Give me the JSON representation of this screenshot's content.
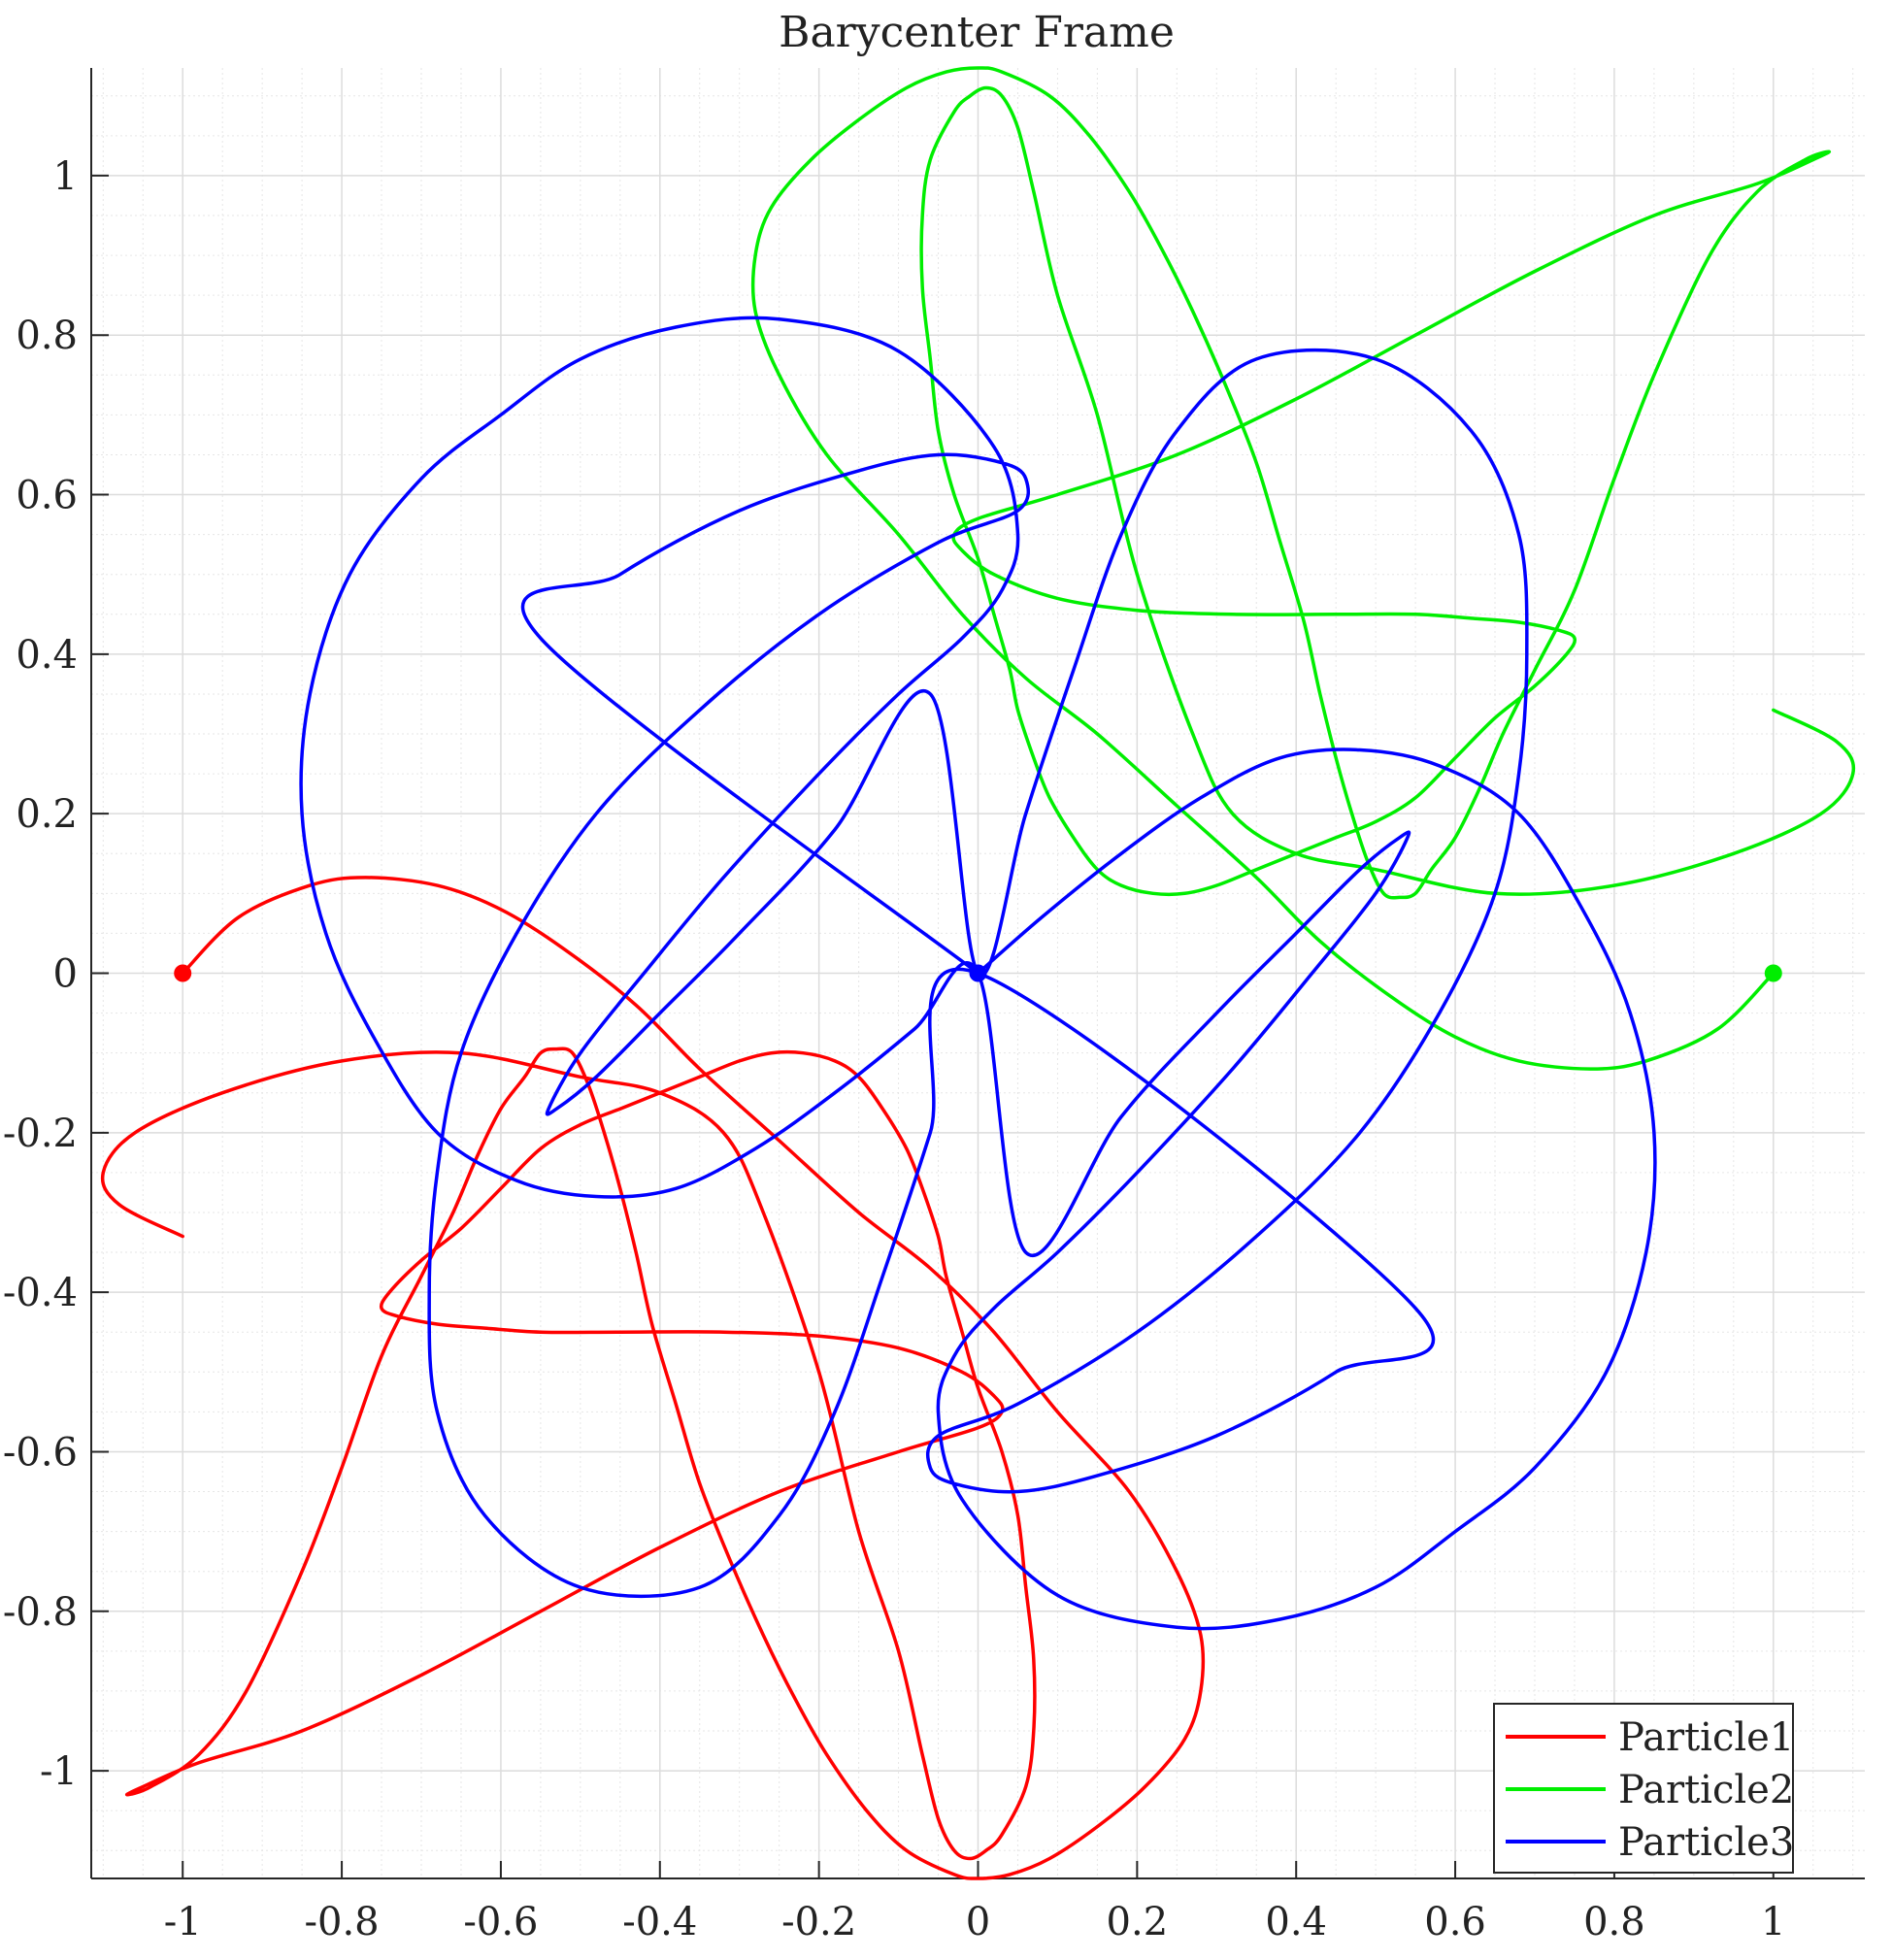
{
  "chart_data": {
    "type": "line",
    "title": "Barycenter Frame",
    "xlabel": "",
    "ylabel": "",
    "xlim": [
      -1.115,
      1.115
    ],
    "ylim": [
      -1.135,
      1.135
    ],
    "xticks": [
      -1,
      -0.8,
      -0.6,
      -0.4,
      -0.2,
      0,
      0.2,
      0.4,
      0.6,
      0.8,
      1
    ],
    "xtick_labels": [
      "-1",
      "-0.8",
      "-0.6",
      "-0.4",
      "-0.2",
      "0",
      "0.2",
      "0.4",
      "0.6",
      "0.8",
      "1"
    ],
    "yticks": [
      -1,
      -0.8,
      -0.6,
      -0.4,
      -0.2,
      0,
      0.2,
      0.4,
      0.6,
      0.8,
      1
    ],
    "ytick_labels": [
      "-1",
      "-0.8",
      "-0.6",
      "-0.4",
      "-0.2",
      "0",
      "0.2",
      "0.4",
      "0.6",
      "0.8",
      "1"
    ],
    "grid": true,
    "minor_grid": true,
    "legend_position": "bottom-right",
    "series": [
      {
        "name": "Particle1",
        "color": "#ff0000",
        "start_marker": [
          -1,
          0
        ],
        "x": [
          -1,
          -0.93,
          -0.84,
          -0.77,
          -0.68,
          -0.6,
          -0.52,
          -0.43,
          -0.35,
          -0.25,
          -0.15,
          -0.06,
          0.02,
          0.1,
          0.19,
          0.25,
          0.28,
          0.28,
          0.26,
          0.21,
          0.15,
          0.09,
          0.04,
          0,
          -0.03,
          -0.09,
          -0.14,
          -0.19,
          -0.23,
          -0.27,
          -0.31,
          -0.35,
          -0.38,
          -0.41,
          -0.43,
          -0.45,
          -0.47,
          -0.49,
          -0.51,
          -0.53,
          -0.55,
          -0.57,
          -0.6,
          -0.63,
          -0.66,
          -0.7,
          -0.75,
          -0.8,
          -0.85,
          -0.92,
          -0.98,
          -1.04,
          -1.07,
          -1.05,
          -0.98,
          -0.85,
          -0.7,
          -0.55,
          -0.4,
          -0.25,
          -0.1,
          0,
          0.03,
          0.02,
          -0.02,
          -0.1,
          -0.2,
          -0.32,
          -0.45,
          -0.55,
          -0.62,
          -0.68,
          -0.73,
          -0.75,
          -0.74,
          -0.7,
          -0.65,
          -0.6,
          -0.55,
          -0.5,
          -0.45,
          -0.4,
          -0.35,
          -0.3,
          -0.26,
          -0.22,
          -0.18,
          -0.15,
          -0.12,
          -0.09,
          -0.07,
          -0.05,
          -0.04,
          -0.02,
          0,
          0.03,
          0.05,
          0.06,
          0.07,
          0.07,
          0.06,
          0.03,
          0.01,
          -0.01,
          -0.03,
          -0.05,
          -0.07,
          -0.1,
          -0.15,
          -0.2,
          -0.27,
          -0.32,
          -0.4,
          -0.5,
          -0.65,
          -0.8,
          -0.95,
          -1.06,
          -1.1,
          -1.08,
          -1.0
        ],
        "y": [
          0,
          0.07,
          0.11,
          0.12,
          0.11,
          0.08,
          0.03,
          -0.04,
          -0.12,
          -0.21,
          -0.3,
          -0.37,
          -0.45,
          -0.55,
          -0.65,
          -0.75,
          -0.83,
          -0.9,
          -0.96,
          -1.02,
          -1.07,
          -1.11,
          -1.13,
          -1.135,
          -1.13,
          -1.1,
          -1.05,
          -0.98,
          -0.91,
          -0.83,
          -0.74,
          -0.64,
          -0.54,
          -0.44,
          -0.35,
          -0.27,
          -0.2,
          -0.14,
          -0.1,
          -0.095,
          -0.1,
          -0.13,
          -0.17,
          -0.23,
          -0.3,
          -0.38,
          -0.48,
          -0.62,
          -0.75,
          -0.9,
          -0.98,
          -1.02,
          -1.03,
          -1.02,
          -0.99,
          -0.95,
          -0.88,
          -0.8,
          -0.72,
          -0.65,
          -0.6,
          -0.57,
          -0.55,
          -0.53,
          -0.5,
          -0.47,
          -0.455,
          -0.45,
          -0.45,
          -0.45,
          -0.445,
          -0.44,
          -0.43,
          -0.42,
          -0.4,
          -0.36,
          -0.32,
          -0.27,
          -0.22,
          -0.19,
          -0.17,
          -0.15,
          -0.13,
          -0.11,
          -0.1,
          -0.1,
          -0.11,
          -0.13,
          -0.17,
          -0.22,
          -0.27,
          -0.33,
          -0.38,
          -0.45,
          -0.52,
          -0.6,
          -0.68,
          -0.77,
          -0.86,
          -0.95,
          -1.02,
          -1.08,
          -1.1,
          -1.11,
          -1.1,
          -1.06,
          -0.98,
          -0.85,
          -0.7,
          -0.5,
          -0.3,
          -0.2,
          -0.15,
          -0.13,
          -0.1,
          -0.11,
          -0.15,
          -0.2,
          -0.25,
          -0.29,
          -0.33
        ]
      },
      {
        "name": "Particle2",
        "color": "#00ee00",
        "start_marker": [
          1,
          0
        ],
        "x": [
          1,
          0.93,
          0.84,
          0.77,
          0.68,
          0.6,
          0.52,
          0.43,
          0.35,
          0.25,
          0.15,
          0.06,
          -0.02,
          -0.1,
          -0.19,
          -0.25,
          -0.28,
          -0.28,
          -0.26,
          -0.21,
          -0.15,
          -0.09,
          -0.04,
          0,
          0.03,
          0.09,
          0.14,
          0.19,
          0.23,
          0.27,
          0.31,
          0.35,
          0.38,
          0.41,
          0.43,
          0.45,
          0.47,
          0.49,
          0.51,
          0.53,
          0.55,
          0.57,
          0.6,
          0.63,
          0.66,
          0.7,
          0.75,
          0.8,
          0.85,
          0.92,
          0.98,
          1.04,
          1.07,
          1.05,
          0.98,
          0.85,
          0.7,
          0.55,
          0.4,
          0.25,
          0.1,
          0,
          -0.03,
          -0.02,
          0.02,
          0.1,
          0.2,
          0.32,
          0.45,
          0.55,
          0.62,
          0.68,
          0.73,
          0.75,
          0.74,
          0.7,
          0.65,
          0.6,
          0.55,
          0.5,
          0.45,
          0.4,
          0.35,
          0.3,
          0.26,
          0.22,
          0.18,
          0.15,
          0.12,
          0.09,
          0.07,
          0.05,
          0.04,
          0.02,
          0,
          -0.03,
          -0.05,
          -0.06,
          -0.07,
          -0.07,
          -0.06,
          -0.03,
          -0.01,
          0.01,
          0.03,
          0.05,
          0.07,
          0.1,
          0.15,
          0.2,
          0.27,
          0.32,
          0.4,
          0.5,
          0.65,
          0.8,
          0.95,
          1.06,
          1.1,
          1.08,
          1.0
        ],
        "y": [
          0,
          -0.07,
          -0.11,
          -0.12,
          -0.11,
          -0.08,
          -0.03,
          0.04,
          0.12,
          0.21,
          0.3,
          0.37,
          0.45,
          0.55,
          0.65,
          0.75,
          0.83,
          0.9,
          0.96,
          1.02,
          1.07,
          1.11,
          1.13,
          1.135,
          1.13,
          1.1,
          1.05,
          0.98,
          0.91,
          0.83,
          0.74,
          0.64,
          0.54,
          0.44,
          0.35,
          0.27,
          0.2,
          0.14,
          0.1,
          0.095,
          0.1,
          0.13,
          0.17,
          0.23,
          0.3,
          0.38,
          0.48,
          0.62,
          0.75,
          0.9,
          0.98,
          1.02,
          1.03,
          1.02,
          0.99,
          0.95,
          0.88,
          0.8,
          0.72,
          0.65,
          0.6,
          0.57,
          0.55,
          0.53,
          0.5,
          0.47,
          0.455,
          0.45,
          0.45,
          0.45,
          0.445,
          0.44,
          0.43,
          0.42,
          0.4,
          0.36,
          0.32,
          0.27,
          0.22,
          0.19,
          0.17,
          0.15,
          0.13,
          0.11,
          0.1,
          0.1,
          0.11,
          0.13,
          0.17,
          0.22,
          0.27,
          0.33,
          0.38,
          0.45,
          0.52,
          0.6,
          0.68,
          0.77,
          0.86,
          0.95,
          1.02,
          1.08,
          1.1,
          1.11,
          1.1,
          1.06,
          0.98,
          0.85,
          0.7,
          0.5,
          0.3,
          0.2,
          0.15,
          0.13,
          0.1,
          0.11,
          0.15,
          0.2,
          0.25,
          0.29,
          0.33
        ]
      },
      {
        "name": "Particle3",
        "color": "#0000ff",
        "start_marker": [
          0,
          0
        ],
        "x": [
          0,
          0.08,
          0.18,
          0.28,
          0.38,
          0.48,
          0.58,
          0.68,
          0.76,
          0.82,
          0.85,
          0.84,
          0.79,
          0.7,
          0.6,
          0.5,
          0.38,
          0.25,
          0.1,
          -0.02,
          -0.05,
          -0.03,
          0.02,
          0.1,
          0.2,
          0.32,
          0.42,
          0.5,
          0.54,
          0.53,
          0.48,
          0.4,
          0.3,
          0.18,
          0.06,
          0,
          -0.08,
          -0.18,
          -0.28,
          -0.38,
          -0.48,
          -0.58,
          -0.68,
          -0.76,
          -0.82,
          -0.85,
          -0.84,
          -0.79,
          -0.7,
          -0.6,
          -0.5,
          -0.38,
          -0.25,
          -0.1,
          0.02,
          0.05,
          0.03,
          -0.02,
          -0.1,
          -0.2,
          -0.32,
          -0.42,
          -0.5,
          -0.54,
          -0.53,
          -0.48,
          -0.4,
          -0.3,
          -0.18,
          -0.06,
          0,
          0.06,
          0.12,
          0.18,
          0.25,
          0.35,
          0.5,
          0.62,
          0.68,
          0.69,
          0.68,
          0.65,
          0.58,
          0.48,
          0.35,
          0.2,
          0.05,
          -0.05,
          -0.06,
          -0.03,
          0.05,
          0.15,
          0.3,
          0.45,
          0.55,
          0,
          -0.06,
          -0.12,
          -0.18,
          -0.25,
          -0.35,
          -0.5,
          -0.62,
          -0.68,
          -0.69,
          -0.68,
          -0.65,
          -0.58,
          -0.48,
          -0.35,
          -0.2,
          -0.05,
          0.05,
          0.06,
          0.03,
          -0.05,
          -0.15,
          -0.3,
          -0.45,
          -0.55,
          0
        ],
        "y": [
          0,
          0.07,
          0.15,
          0.22,
          0.27,
          0.28,
          0.26,
          0.2,
          0.08,
          -0.05,
          -0.2,
          -0.35,
          -0.5,
          -0.62,
          -0.7,
          -0.77,
          -0.81,
          -0.82,
          -0.78,
          -0.66,
          -0.55,
          -0.48,
          -0.42,
          -0.35,
          -0.25,
          -0.12,
          0,
          0.1,
          0.17,
          0.17,
          0.13,
          0.05,
          -0.05,
          -0.18,
          -0.35,
          0,
          -0.07,
          -0.15,
          -0.22,
          -0.27,
          -0.28,
          -0.26,
          -0.2,
          -0.08,
          0.05,
          0.2,
          0.35,
          0.5,
          0.62,
          0.7,
          0.77,
          0.81,
          0.82,
          0.78,
          0.66,
          0.55,
          0.48,
          0.42,
          0.35,
          0.25,
          0.12,
          0,
          -0.1,
          -0.17,
          -0.17,
          -0.13,
          -0.05,
          0.05,
          0.18,
          0.35,
          0,
          0.2,
          0.38,
          0.55,
          0.68,
          0.77,
          0.77,
          0.68,
          0.55,
          0.4,
          0.25,
          0.1,
          -0.05,
          -0.2,
          -0.33,
          -0.45,
          -0.54,
          -0.58,
          -0.62,
          -0.64,
          -0.65,
          -0.63,
          -0.58,
          -0.5,
          -0.42,
          0,
          -0.2,
          -0.38,
          -0.55,
          -0.68,
          -0.77,
          -0.77,
          -0.68,
          -0.55,
          -0.4,
          -0.25,
          -0.1,
          0.05,
          0.2,
          0.33,
          0.45,
          0.54,
          0.58,
          0.62,
          0.64,
          0.65,
          0.63,
          0.58,
          0.5,
          0.42,
          0
        ]
      }
    ]
  }
}
